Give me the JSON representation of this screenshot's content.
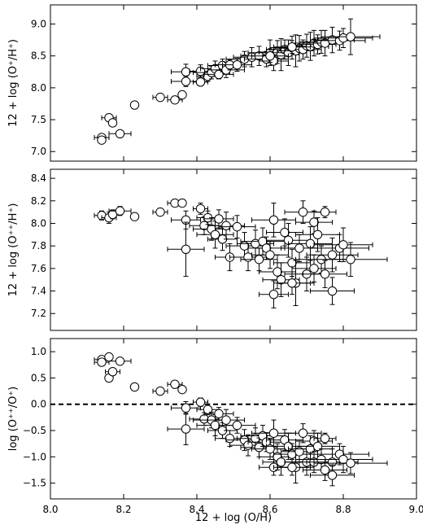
{
  "chart_data": [
    {
      "type": "scatter",
      "ylabel": "12 + log (O⁺/H⁺)",
      "xlim": [
        8.0,
        9.0
      ],
      "ylim": [
        6.85,
        9.3
      ],
      "yticks": [
        "7.0",
        "7.5",
        "8.0",
        "8.5",
        "9.0"
      ],
      "ytick_values": [
        7.0,
        7.5,
        8.0,
        8.5,
        9.0
      ],
      "error_bars": true,
      "points": [
        {
          "x": 8.14,
          "y": 7.22,
          "ex": 0.02,
          "ey": 0.05
        },
        {
          "x": 8.16,
          "y": 7.53,
          "ex": 0.02,
          "ey": 0.04
        },
        {
          "x": 8.17,
          "y": 7.45,
          "ex": 0.01,
          "ey": 0.04
        },
        {
          "x": 8.19,
          "y": 7.28,
          "ex": 0.03,
          "ey": 0.04
        },
        {
          "x": 8.14,
          "y": 7.18,
          "ex": 0.01,
          "ey": 0.03
        },
        {
          "x": 8.23,
          "y": 7.73,
          "ex": 0.0,
          "ey": 0.0
        },
        {
          "x": 8.3,
          "y": 7.85,
          "ex": 0.02,
          "ey": 0.04
        },
        {
          "x": 8.34,
          "y": 7.81,
          "ex": 0.02,
          "ey": 0.03
        },
        {
          "x": 8.36,
          "y": 7.89,
          "ex": 0.01,
          "ey": 0.03
        },
        {
          "x": 8.37,
          "y": 8.25,
          "ex": 0.04,
          "ey": 0.12
        },
        {
          "x": 8.37,
          "y": 8.1,
          "ex": 0.04,
          "ey": 0.08
        },
        {
          "x": 8.41,
          "y": 8.09,
          "ex": 0.02,
          "ey": 0.06
        },
        {
          "x": 8.41,
          "y": 8.26,
          "ex": 0.03,
          "ey": 0.1
        },
        {
          "x": 8.43,
          "y": 8.18,
          "ex": 0.03,
          "ey": 0.08
        },
        {
          "x": 8.44,
          "y": 8.24,
          "ex": 0.05,
          "ey": 0.1
        },
        {
          "x": 8.45,
          "y": 8.3,
          "ex": 0.04,
          "ey": 0.12
        },
        {
          "x": 8.46,
          "y": 8.21,
          "ex": 0.04,
          "ey": 0.07
        },
        {
          "x": 8.47,
          "y": 8.35,
          "ex": 0.04,
          "ey": 0.1
        },
        {
          "x": 8.48,
          "y": 8.28,
          "ex": 0.05,
          "ey": 0.12
        },
        {
          "x": 8.49,
          "y": 8.36,
          "ex": 0.04,
          "ey": 0.08
        },
        {
          "x": 8.51,
          "y": 8.36,
          "ex": 0.04,
          "ey": 0.1
        },
        {
          "x": 8.53,
          "y": 8.45,
          "ex": 0.05,
          "ey": 0.12
        },
        {
          "x": 8.55,
          "y": 8.48,
          "ex": 0.05,
          "ey": 0.15
        },
        {
          "x": 8.57,
          "y": 8.5,
          "ex": 0.05,
          "ey": 0.15
        },
        {
          "x": 8.59,
          "y": 8.45,
          "ex": 0.06,
          "ey": 0.12
        },
        {
          "x": 8.6,
          "y": 8.55,
          "ex": 0.06,
          "ey": 0.2
        },
        {
          "x": 8.61,
          "y": 8.42,
          "ex": 0.04,
          "ey": 0.15
        },
        {
          "x": 8.62,
          "y": 8.56,
          "ex": 0.05,
          "ey": 0.18
        },
        {
          "x": 8.63,
          "y": 8.52,
          "ex": 0.05,
          "ey": 0.25
        },
        {
          "x": 8.64,
          "y": 8.6,
          "ex": 0.05,
          "ey": 0.15
        },
        {
          "x": 8.65,
          "y": 8.55,
          "ex": 0.05,
          "ey": 0.2
        },
        {
          "x": 8.66,
          "y": 8.63,
          "ex": 0.06,
          "ey": 0.18
        },
        {
          "x": 8.67,
          "y": 8.58,
          "ex": 0.05,
          "ey": 0.25
        },
        {
          "x": 8.68,
          "y": 8.62,
          "ex": 0.05,
          "ey": 0.2
        },
        {
          "x": 8.69,
          "y": 8.6,
          "ex": 0.05,
          "ey": 0.15
        },
        {
          "x": 8.7,
          "y": 8.66,
          "ex": 0.06,
          "ey": 0.18
        },
        {
          "x": 8.71,
          "y": 8.65,
          "ex": 0.05,
          "ey": 0.22
        },
        {
          "x": 8.72,
          "y": 8.7,
          "ex": 0.06,
          "ey": 0.2
        },
        {
          "x": 8.73,
          "y": 8.68,
          "ex": 0.05,
          "ey": 0.15
        },
        {
          "x": 8.74,
          "y": 8.72,
          "ex": 0.06,
          "ey": 0.18
        },
        {
          "x": 8.75,
          "y": 8.7,
          "ex": 0.05,
          "ey": 0.2
        },
        {
          "x": 8.77,
          "y": 8.75,
          "ex": 0.06,
          "ey": 0.2
        },
        {
          "x": 8.79,
          "y": 8.74,
          "ex": 0.07,
          "ey": 0.15
        },
        {
          "x": 8.8,
          "y": 8.78,
          "ex": 0.08,
          "ey": 0.15
        },
        {
          "x": 8.82,
          "y": 8.8,
          "ex": 0.08,
          "ey": 0.28
        },
        {
          "x": 8.66,
          "y": 8.64,
          "ex": 0.05,
          "ey": 0.1
        },
        {
          "x": 8.6,
          "y": 8.5,
          "ex": 0.05,
          "ey": 0.1
        }
      ]
    },
    {
      "type": "scatter",
      "ylabel": "12 + log (O⁺⁺/H⁺)",
      "xlim": [
        8.0,
        9.0
      ],
      "ylim": [
        7.05,
        8.48
      ],
      "yticks": [
        "7.2",
        "7.4",
        "7.6",
        "7.8",
        "8.0",
        "8.2",
        "8.4"
      ],
      "ytick_values": [
        7.2,
        7.4,
        7.6,
        7.8,
        8.0,
        8.2,
        8.4
      ],
      "error_bars": true,
      "points": [
        {
          "x": 8.14,
          "y": 8.07,
          "ex": 0.02,
          "ey": 0.04
        },
        {
          "x": 8.16,
          "y": 8.05,
          "ex": 0.02,
          "ey": 0.05
        },
        {
          "x": 8.17,
          "y": 8.08,
          "ex": 0.01,
          "ey": 0.04
        },
        {
          "x": 8.19,
          "y": 8.11,
          "ex": 0.03,
          "ey": 0.04
        },
        {
          "x": 8.23,
          "y": 8.06,
          "ex": 0.0,
          "ey": 0.0
        },
        {
          "x": 8.3,
          "y": 8.1,
          "ex": 0.02,
          "ey": 0.03
        },
        {
          "x": 8.34,
          "y": 8.18,
          "ex": 0.02,
          "ey": 0.03
        },
        {
          "x": 8.36,
          "y": 8.18,
          "ex": 0.01,
          "ey": 0.03
        },
        {
          "x": 8.37,
          "y": 8.03,
          "ex": 0.04,
          "ey": 0.08
        },
        {
          "x": 8.37,
          "y": 7.77,
          "ex": 0.05,
          "ey": 0.24
        },
        {
          "x": 8.41,
          "y": 8.13,
          "ex": 0.02,
          "ey": 0.05
        },
        {
          "x": 8.42,
          "y": 7.98,
          "ex": 0.04,
          "ey": 0.08
        },
        {
          "x": 8.43,
          "y": 8.05,
          "ex": 0.03,
          "ey": 0.06
        },
        {
          "x": 8.44,
          "y": 7.95,
          "ex": 0.05,
          "ey": 0.1
        },
        {
          "x": 8.45,
          "y": 7.9,
          "ex": 0.05,
          "ey": 0.12
        },
        {
          "x": 8.46,
          "y": 8.04,
          "ex": 0.04,
          "ey": 0.08
        },
        {
          "x": 8.47,
          "y": 7.86,
          "ex": 0.04,
          "ey": 0.1
        },
        {
          "x": 8.48,
          "y": 7.98,
          "ex": 0.05,
          "ey": 0.12
        },
        {
          "x": 8.49,
          "y": 7.7,
          "ex": 0.04,
          "ey": 0.12
        },
        {
          "x": 8.51,
          "y": 7.97,
          "ex": 0.05,
          "ey": 0.1
        },
        {
          "x": 8.53,
          "y": 7.8,
          "ex": 0.05,
          "ey": 0.12
        },
        {
          "x": 8.54,
          "y": 7.7,
          "ex": 0.05,
          "ey": 0.12
        },
        {
          "x": 8.56,
          "y": 7.82,
          "ex": 0.05,
          "ey": 0.12
        },
        {
          "x": 8.57,
          "y": 7.68,
          "ex": 0.05,
          "ey": 0.1
        },
        {
          "x": 8.58,
          "y": 7.84,
          "ex": 0.06,
          "ey": 0.12
        },
        {
          "x": 8.59,
          "y": 7.78,
          "ex": 0.05,
          "ey": 0.1
        },
        {
          "x": 8.6,
          "y": 7.72,
          "ex": 0.05,
          "ey": 0.12
        },
        {
          "x": 8.61,
          "y": 8.03,
          "ex": 0.06,
          "ey": 0.15
        },
        {
          "x": 8.62,
          "y": 7.57,
          "ex": 0.05,
          "ey": 0.15
        },
        {
          "x": 8.63,
          "y": 7.5,
          "ex": 0.05,
          "ey": 0.15
        },
        {
          "x": 8.64,
          "y": 7.92,
          "ex": 0.05,
          "ey": 0.12
        },
        {
          "x": 8.65,
          "y": 7.85,
          "ex": 0.06,
          "ey": 0.15
        },
        {
          "x": 8.61,
          "y": 7.37,
          "ex": 0.04,
          "ey": 0.12
        },
        {
          "x": 8.66,
          "y": 7.65,
          "ex": 0.05,
          "ey": 0.12
        },
        {
          "x": 8.67,
          "y": 7.47,
          "ex": 0.05,
          "ey": 0.2
        },
        {
          "x": 8.68,
          "y": 7.78,
          "ex": 0.05,
          "ey": 0.12
        },
        {
          "x": 8.69,
          "y": 8.1,
          "ex": 0.05,
          "ey": 0.1
        },
        {
          "x": 8.7,
          "y": 7.55,
          "ex": 0.06,
          "ey": 0.15
        },
        {
          "x": 8.71,
          "y": 7.82,
          "ex": 0.06,
          "ey": 0.15
        },
        {
          "x": 8.72,
          "y": 7.6,
          "ex": 0.06,
          "ey": 0.12
        },
        {
          "x": 8.72,
          "y": 8.01,
          "ex": 0.05,
          "ey": 0.1
        },
        {
          "x": 8.73,
          "y": 7.9,
          "ex": 0.06,
          "ey": 0.15
        },
        {
          "x": 8.74,
          "y": 7.68,
          "ex": 0.07,
          "ey": 0.12
        },
        {
          "x": 8.75,
          "y": 7.55,
          "ex": 0.06,
          "ey": 0.12
        },
        {
          "x": 8.75,
          "y": 8.1,
          "ex": 0.03,
          "ey": 0.05
        },
        {
          "x": 8.77,
          "y": 7.72,
          "ex": 0.07,
          "ey": 0.15
        },
        {
          "x": 8.79,
          "y": 7.78,
          "ex": 0.08,
          "ey": 0.12
        },
        {
          "x": 8.8,
          "y": 7.81,
          "ex": 0.08,
          "ey": 0.15
        },
        {
          "x": 8.82,
          "y": 7.68,
          "ex": 0.1,
          "ey": 0.15
        },
        {
          "x": 8.77,
          "y": 7.4,
          "ex": 0.06,
          "ey": 0.12
        },
        {
          "x": 8.66,
          "y": 7.47,
          "ex": 0.05,
          "ey": 0.1
        }
      ]
    },
    {
      "type": "scatter",
      "xlabel": "12 + log (O/H)",
      "ylabel": "log (O⁺⁺/O⁺)",
      "xlim": [
        8.0,
        9.0
      ],
      "ylim": [
        -1.8,
        1.25
      ],
      "yticks": [
        "−1.5",
        "−1.0",
        "−0.5",
        "0.0",
        "0.5",
        "1.0"
      ],
      "ytick_values": [
        -1.5,
        -1.0,
        -0.5,
        0.0,
        0.5,
        1.0
      ],
      "xticks": [
        "8.0",
        "8.2",
        "8.4",
        "8.6",
        "8.8",
        "9.0"
      ],
      "xtick_values": [
        8.0,
        8.2,
        8.4,
        8.6,
        8.8,
        9.0
      ],
      "reference_line": {
        "y": 0.0,
        "style": "dashed"
      },
      "error_bars": true,
      "points": [
        {
          "x": 8.14,
          "y": 0.85,
          "ex": 0.02,
          "ey": 0.06
        },
        {
          "x": 8.14,
          "y": 0.8,
          "ex": 0.02,
          "ey": 0.06
        },
        {
          "x": 8.16,
          "y": 0.5,
          "ex": 0.01,
          "ey": 0.06
        },
        {
          "x": 8.17,
          "y": 0.62,
          "ex": 0.02,
          "ey": 0.06
        },
        {
          "x": 8.19,
          "y": 0.82,
          "ex": 0.03,
          "ey": 0.06
        },
        {
          "x": 8.16,
          "y": 0.9,
          "ex": 0.01,
          "ey": 0.04
        },
        {
          "x": 8.23,
          "y": 0.33,
          "ex": 0.0,
          "ey": 0.0
        },
        {
          "x": 8.3,
          "y": 0.25,
          "ex": 0.02,
          "ey": 0.06
        },
        {
          "x": 8.34,
          "y": 0.38,
          "ex": 0.02,
          "ey": 0.05
        },
        {
          "x": 8.36,
          "y": 0.28,
          "ex": 0.01,
          "ey": 0.05
        },
        {
          "x": 8.37,
          "y": -0.47,
          "ex": 0.05,
          "ey": 0.3
        },
        {
          "x": 8.37,
          "y": -0.07,
          "ex": 0.04,
          "ey": 0.12
        },
        {
          "x": 8.41,
          "y": 0.04,
          "ex": 0.02,
          "ey": 0.08
        },
        {
          "x": 8.42,
          "y": -0.28,
          "ex": 0.04,
          "ey": 0.12
        },
        {
          "x": 8.43,
          "y": -0.1,
          "ex": 0.03,
          "ey": 0.1
        },
        {
          "x": 8.44,
          "y": -0.3,
          "ex": 0.05,
          "ey": 0.15
        },
        {
          "x": 8.45,
          "y": -0.4,
          "ex": 0.05,
          "ey": 0.2
        },
        {
          "x": 8.46,
          "y": -0.18,
          "ex": 0.04,
          "ey": 0.12
        },
        {
          "x": 8.47,
          "y": -0.5,
          "ex": 0.04,
          "ey": 0.15
        },
        {
          "x": 8.48,
          "y": -0.3,
          "ex": 0.05,
          "ey": 0.2
        },
        {
          "x": 8.49,
          "y": -0.65,
          "ex": 0.04,
          "ey": 0.15
        },
        {
          "x": 8.51,
          "y": -0.4,
          "ex": 0.05,
          "ey": 0.15
        },
        {
          "x": 8.53,
          "y": -0.68,
          "ex": 0.05,
          "ey": 0.2
        },
        {
          "x": 8.54,
          "y": -0.78,
          "ex": 0.05,
          "ey": 0.2
        },
        {
          "x": 8.56,
          "y": -0.65,
          "ex": 0.05,
          "ey": 0.2
        },
        {
          "x": 8.57,
          "y": -0.82,
          "ex": 0.05,
          "ey": 0.18
        },
        {
          "x": 8.58,
          "y": -0.6,
          "ex": 0.06,
          "ey": 0.2
        },
        {
          "x": 8.59,
          "y": -0.72,
          "ex": 0.05,
          "ey": 0.18
        },
        {
          "x": 8.6,
          "y": -0.85,
          "ex": 0.05,
          "ey": 0.2
        },
        {
          "x": 8.61,
          "y": -0.55,
          "ex": 0.06,
          "ey": 0.25
        },
        {
          "x": 8.61,
          "y": -1.2,
          "ex": 0.04,
          "ey": 0.15
        },
        {
          "x": 8.62,
          "y": -1.0,
          "ex": 0.05,
          "ey": 0.25
        },
        {
          "x": 8.63,
          "y": -1.1,
          "ex": 0.05,
          "ey": 0.25
        },
        {
          "x": 8.64,
          "y": -0.68,
          "ex": 0.05,
          "ey": 0.2
        },
        {
          "x": 8.65,
          "y": -0.8,
          "ex": 0.06,
          "ey": 0.25
        },
        {
          "x": 8.66,
          "y": -0.95,
          "ex": 0.05,
          "ey": 0.2
        },
        {
          "x": 8.67,
          "y": -1.2,
          "ex": 0.05,
          "ey": 0.3
        },
        {
          "x": 8.68,
          "y": -0.9,
          "ex": 0.05,
          "ey": 0.2
        },
        {
          "x": 8.69,
          "y": -0.55,
          "ex": 0.05,
          "ey": 0.18
        },
        {
          "x": 8.7,
          "y": -1.1,
          "ex": 0.06,
          "ey": 0.25
        },
        {
          "x": 8.71,
          "y": -0.85,
          "ex": 0.06,
          "ey": 0.25
        },
        {
          "x": 8.72,
          "y": -1.1,
          "ex": 0.06,
          "ey": 0.2
        },
        {
          "x": 8.72,
          "y": -0.7,
          "ex": 0.05,
          "ey": 0.2
        },
        {
          "x": 8.73,
          "y": -0.8,
          "ex": 0.06,
          "ey": 0.25
        },
        {
          "x": 8.74,
          "y": -1.05,
          "ex": 0.07,
          "ey": 0.2
        },
        {
          "x": 8.75,
          "y": -1.25,
          "ex": 0.06,
          "ey": 0.2
        },
        {
          "x": 8.75,
          "y": -0.65,
          "ex": 0.03,
          "ey": 0.1
        },
        {
          "x": 8.77,
          "y": -1.1,
          "ex": 0.07,
          "ey": 0.25
        },
        {
          "x": 8.77,
          "y": -1.35,
          "ex": 0.06,
          "ey": 0.2
        },
        {
          "x": 8.79,
          "y": -0.95,
          "ex": 0.08,
          "ey": 0.2
        },
        {
          "x": 8.8,
          "y": -1.05,
          "ex": 0.08,
          "ey": 0.25
        },
        {
          "x": 8.82,
          "y": -1.12,
          "ex": 0.1,
          "ey": 0.2
        },
        {
          "x": 8.66,
          "y": -1.2,
          "ex": 0.05,
          "ey": 0.15
        }
      ]
    }
  ]
}
